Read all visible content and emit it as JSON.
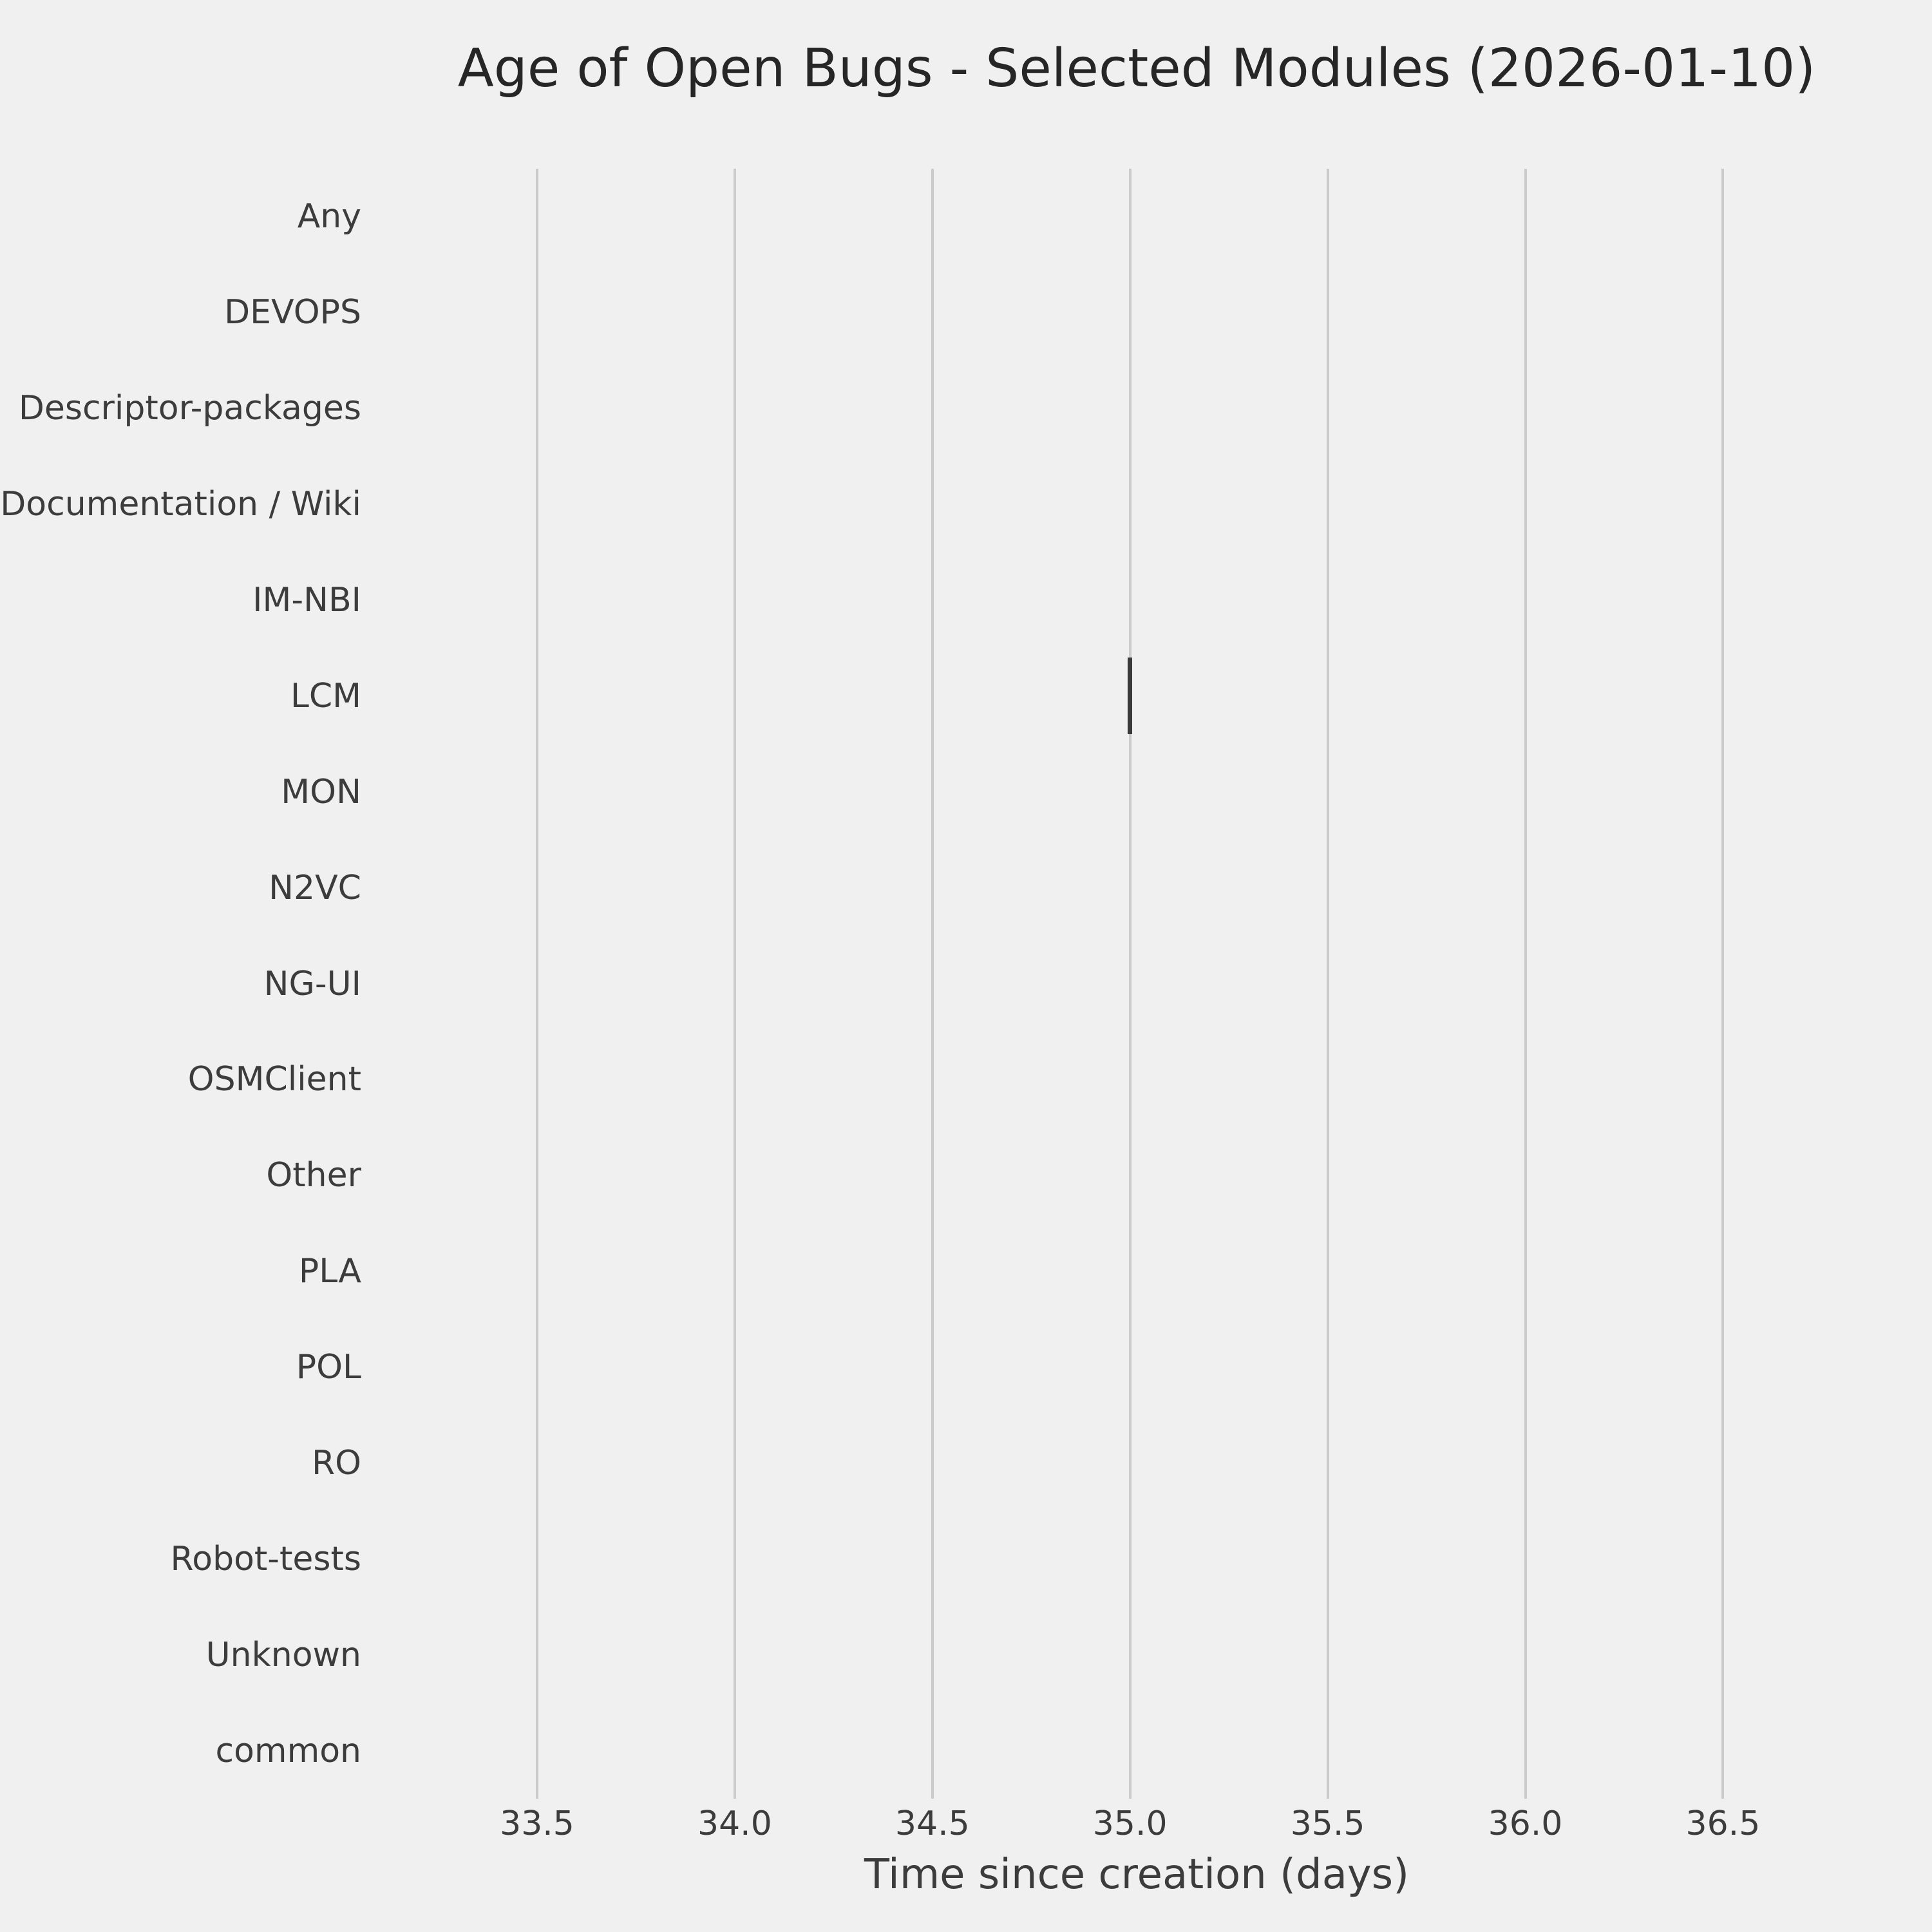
{
  "title": "Age of Open Bugs - Selected Modules (2026-01-10)",
  "chart_data": {
    "type": "boxplot",
    "orientation": "horizontal",
    "title": "Age of Open Bugs - Selected Modules (2026-01-10)",
    "xlabel": "Time since creation (days)",
    "ylabel": "",
    "categories": [
      "Any",
      "DEVOPS",
      "Descriptor-packages",
      "Documentation / Wiki",
      "IM-NBI",
      "LCM",
      "MON",
      "N2VC",
      "NG-UI",
      "OSMClient",
      "Other",
      "PLA",
      "POL",
      "RO",
      "Robot-tests",
      "Unknown",
      "common"
    ],
    "x_ticks": [
      33.5,
      34.0,
      34.5,
      35.0,
      35.5,
      36.0,
      36.5
    ],
    "xlim": [
      33.2,
      36.8
    ],
    "grid": true,
    "legend": false,
    "points": [
      {
        "category": "LCM",
        "median": 35.0,
        "q1": 35.0,
        "q3": 35.0,
        "whisker_low": 35.0,
        "whisker_high": 35.0,
        "n_values_note": "single value box collapses to a vertical line at 35.0"
      }
    ],
    "colors": {
      "background": "#f0f0f0",
      "gridline": "#cbcbcb",
      "box_line": "#3a3a3a",
      "text": "#3c3c3c",
      "title_text": "#262626"
    }
  }
}
